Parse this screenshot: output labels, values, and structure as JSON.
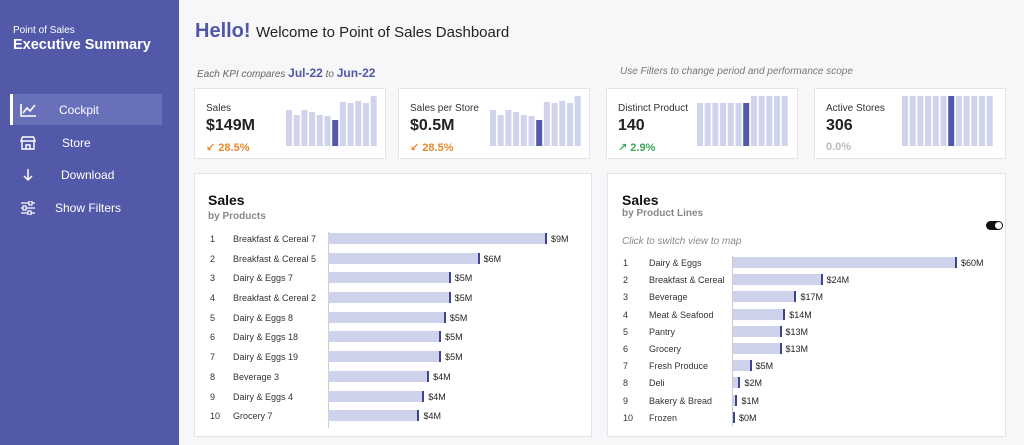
{
  "sidebar": {
    "app_label": "Point of Sales",
    "title": "Executive Summary",
    "items": [
      {
        "label": "Cockpit",
        "icon": "line-chart-icon"
      },
      {
        "label": "Store",
        "icon": "store-icon"
      },
      {
        "label": "Download",
        "icon": "download-arrow-icon"
      },
      {
        "label": "Show Filters",
        "icon": "sliders-icon"
      }
    ],
    "active_item": "Cockpit"
  },
  "header": {
    "hello": "Hello!",
    "welcome": "Welcome to Point of Sales Dashboard",
    "compare_prefix": "Each KPI compares",
    "period_from": "Jul-22",
    "compare_to": "to",
    "period_to": "Jun-22",
    "filters_hint": "Use Filters to change period and performance scope"
  },
  "colors": {
    "accent": "#5259a8",
    "bar_light": "#d0d3ec",
    "negative": "#e8892c",
    "positive": "#3aa85a",
    "neutral": "#bbbbbb"
  },
  "kpis": [
    {
      "label": "Sales",
      "value": "$149M",
      "delta": "28.5%",
      "trend": "down",
      "bars": [
        0.72,
        0.62,
        0.72,
        0.68,
        0.62,
        0.6,
        0.52,
        0.88,
        0.86,
        0.9,
        0.86,
        1.0
      ],
      "current_index": 6
    },
    {
      "label": "Sales per Store",
      "value": "$0.5M",
      "delta": "28.5%",
      "trend": "down",
      "bars": [
        0.72,
        0.62,
        0.72,
        0.68,
        0.62,
        0.6,
        0.52,
        0.88,
        0.86,
        0.9,
        0.86,
        1.0
      ],
      "current_index": 6
    },
    {
      "label": "Distinct Product",
      "value": "140",
      "delta": "2.9%",
      "trend": "up",
      "bars": [
        0.86,
        0.86,
        0.86,
        0.86,
        0.86,
        0.86,
        0.86,
        1.0,
        1.0,
        1.0,
        1.0,
        1.0
      ],
      "current_index": 6
    },
    {
      "label": "Active Stores",
      "value": "306",
      "delta": "0.0%",
      "trend": "flat",
      "bars": [
        1,
        1,
        1,
        1,
        1,
        1,
        1,
        1,
        1,
        1,
        1,
        1
      ],
      "current_index": 6
    }
  ],
  "sales_by_products": {
    "title": "Sales",
    "subtitle": "by Products",
    "rows": [
      {
        "rank": "1",
        "name": "Breakfast & Cereal 7",
        "label": "$9M",
        "value": 9.1
      },
      {
        "rank": "2",
        "name": "Breakfast & Cereal 5",
        "label": "$6M",
        "value": 6.3
      },
      {
        "rank": "3",
        "name": "Dairy & Eggs 7",
        "label": "$5M",
        "value": 5.1
      },
      {
        "rank": "4",
        "name": "Breakfast & Cereal 2",
        "label": "$5M",
        "value": 5.1
      },
      {
        "rank": "5",
        "name": "Dairy & Eggs 8",
        "label": "$5M",
        "value": 4.9
      },
      {
        "rank": "6",
        "name": "Dairy & Eggs 18",
        "label": "$5M",
        "value": 4.7
      },
      {
        "rank": "7",
        "name": "Dairy & Eggs 19",
        "label": "$5M",
        "value": 4.7
      },
      {
        "rank": "8",
        "name": "Beverage 3",
        "label": "$4M",
        "value": 4.2
      },
      {
        "rank": "9",
        "name": "Dairy & Eggs 4",
        "label": "$4M",
        "value": 4.0
      },
      {
        "rank": "10",
        "name": "Grocery 7",
        "label": "$4M",
        "value": 3.8
      }
    ]
  },
  "sales_by_product_lines": {
    "title": "Sales",
    "subtitle": "by Product Lines",
    "hint": "Click to switch view to map",
    "rows": [
      {
        "rank": "1",
        "name": "Dairy & Eggs",
        "label": "$60M",
        "value": 60
      },
      {
        "rank": "2",
        "name": "Breakfast & Cereal",
        "label": "$24M",
        "value": 24
      },
      {
        "rank": "3",
        "name": "Beverage",
        "label": "$17M",
        "value": 17
      },
      {
        "rank": "4",
        "name": "Meat & Seafood",
        "label": "$14M",
        "value": 14
      },
      {
        "rank": "5",
        "name": "Pantry",
        "label": "$13M",
        "value": 13
      },
      {
        "rank": "6",
        "name": "Grocery",
        "label": "$13M",
        "value": 13
      },
      {
        "rank": "7",
        "name": "Fresh Produce",
        "label": "$5M",
        "value": 5
      },
      {
        "rank": "8",
        "name": "Deli",
        "label": "$2M",
        "value": 2
      },
      {
        "rank": "9",
        "name": "Bakery & Bread",
        "label": "$1M",
        "value": 1.2
      },
      {
        "rank": "10",
        "name": "Frozen",
        "label": "$0M",
        "value": 0.2
      }
    ]
  }
}
